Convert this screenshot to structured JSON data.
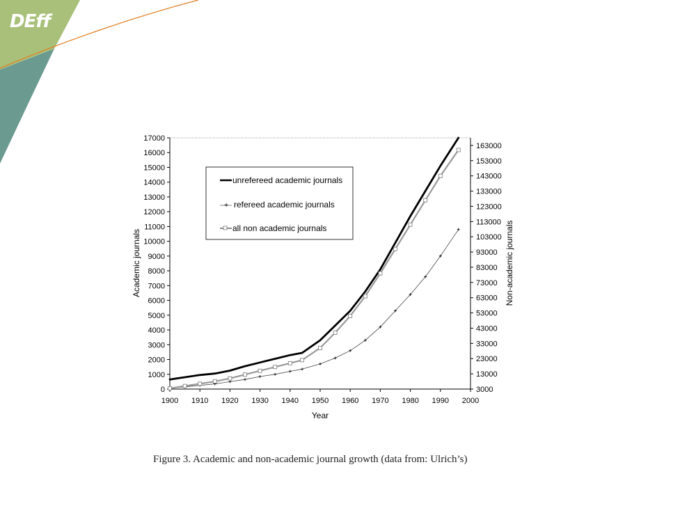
{
  "brand": {
    "logo_text": "DEff",
    "colors": {
      "green": "#a9c07a",
      "teal": "#6b9a90",
      "orange": "#e07b20"
    }
  },
  "caption": "Figure 3. Academic and non-academic journal growth (data from: Ulrich’s)",
  "chart_data": {
    "type": "line",
    "title": "",
    "xlabel": "Year",
    "ylabel": "Academic journals",
    "y2label": "Non-academic journals",
    "xlim": [
      1900,
      2000
    ],
    "ylim": [
      0,
      17000
    ],
    "y2lim": [
      3000,
      168000
    ],
    "xticks": [
      1900,
      1910,
      1920,
      1930,
      1940,
      1950,
      1960,
      1970,
      1980,
      1990,
      2000
    ],
    "yticks": [
      0,
      1000,
      2000,
      3000,
      4000,
      5000,
      6000,
      7000,
      8000,
      9000,
      10000,
      11000,
      12000,
      13000,
      14000,
      15000,
      16000,
      17000
    ],
    "y2ticks": [
      3000,
      13000,
      23000,
      33000,
      43000,
      53000,
      63000,
      73000,
      83000,
      93000,
      103000,
      113000,
      123000,
      133000,
      143000,
      153000,
      163000
    ],
    "grid": false,
    "legend_position": "upper-left",
    "series": [
      {
        "name": "unrefereed academic journals",
        "axis": "left",
        "marker": "none",
        "x": [
          1900,
          1905,
          1910,
          1915,
          1920,
          1925,
          1930,
          1935,
          1940,
          1944,
          1950,
          1955,
          1960,
          1965,
          1970,
          1975,
          1980,
          1985,
          1990,
          1996
        ],
        "y": [
          650,
          800,
          950,
          1050,
          1250,
          1550,
          1800,
          2050,
          2300,
          2450,
          3300,
          4300,
          5300,
          6600,
          8100,
          9900,
          11700,
          13400,
          15100,
          17000
        ]
      },
      {
        "name": "refereed academic journals",
        "axis": "left",
        "marker": "plus",
        "x": [
          1900,
          1905,
          1910,
          1915,
          1920,
          1925,
          1930,
          1935,
          1940,
          1944,
          1950,
          1955,
          1960,
          1965,
          1970,
          1975,
          1980,
          1985,
          1990,
          1996
        ],
        "y": [
          50,
          150,
          250,
          350,
          500,
          650,
          850,
          1000,
          1200,
          1350,
          1700,
          2100,
          2600,
          3300,
          4200,
          5300,
          6400,
          7600,
          9000,
          10800
        ]
      },
      {
        "name": "all non academic journals",
        "axis": "right",
        "marker": "square",
        "x": [
          1900,
          1905,
          1910,
          1915,
          1920,
          1925,
          1930,
          1935,
          1940,
          1944,
          1950,
          1955,
          1960,
          1965,
          1970,
          1975,
          1980,
          1985,
          1990,
          1996
        ],
        "y": [
          3500,
          5000,
          6500,
          8000,
          10000,
          12500,
          15000,
          17500,
          20000,
          22000,
          30000,
          40000,
          51000,
          64000,
          79000,
          95000,
          111000,
          127000,
          143000,
          160000
        ]
      }
    ]
  }
}
